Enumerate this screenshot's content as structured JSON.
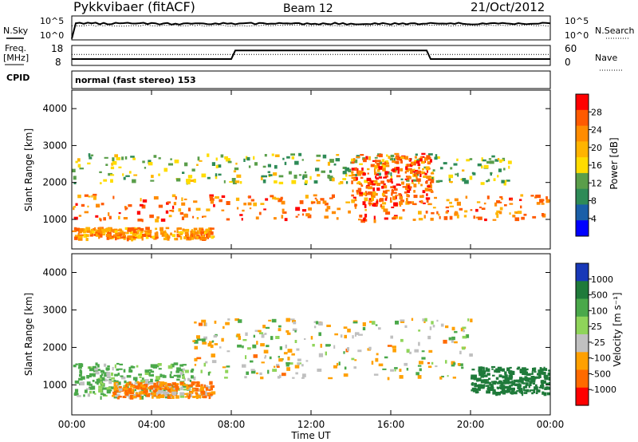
{
  "header": {
    "station": "Pykkvibaer (fitACF)",
    "beam": "Beam 12",
    "date": "21/Oct/2012"
  },
  "top_panels": {
    "nsky_label": "N.Sky",
    "nsky_ticks": [
      "10^5",
      "10^0"
    ],
    "nsky_right_ticks": [
      "10^5",
      "10^0"
    ],
    "nsearch_label": "N.Search",
    "freq_label": "Freq.",
    "freq_unit": "[MHz]",
    "freq_ticks": [
      "18",
      "8"
    ],
    "nave_ticks": [
      "60",
      "0"
    ],
    "nave_label": "Nave",
    "cpid_label": "CPID",
    "cpid_text": "normal (fast stereo) 153"
  },
  "panels": {
    "y_label": "Slant Range [km]",
    "y_ticks": [
      "4000",
      "3000",
      "2000",
      "1000"
    ],
    "x_ticks": [
      "00:00",
      "04:00",
      "08:00",
      "12:00",
      "16:00",
      "20:00",
      "00:00"
    ],
    "x_label": "Time UT"
  },
  "colorbars": {
    "power": {
      "title": "Power [dB]",
      "ticks": [
        "28",
        "24",
        "20",
        "16",
        "12",
        "8",
        "4"
      ],
      "colors": [
        "#ff0000",
        "#ff5a00",
        "#ff8c00",
        "#ffb400",
        "#ffdc00",
        "#5a9e4a",
        "#2e8b57",
        "#1a5fa8",
        "#0000ff"
      ]
    },
    "velocity": {
      "title": "Velocity [m s⁻¹]",
      "ticks": [
        "1000",
        "500",
        "100",
        "25",
        "-25",
        "-100",
        "-500",
        "-1000"
      ],
      "colors": [
        "#1838b8",
        "#1f7a3a",
        "#4aa84a",
        "#8fd45a",
        "#c0c0c0",
        "#ffa000",
        "#ff6a00",
        "#ff0000"
      ]
    }
  },
  "chart_data": [
    {
      "type": "heatmap",
      "title": "Power",
      "xlabel": "Time UT",
      "ylabel": "Slant Range [km]",
      "xlim": [
        "00:00",
        "24:00"
      ],
      "ylim": [
        200,
        4500
      ],
      "colorscale_label": "Power [dB]",
      "colorscale_range": [
        0,
        30
      ],
      "bands": [
        {
          "range_km": [
            1000,
            1700
          ],
          "time": [
            "00:00",
            "24:00"
          ],
          "typical_db": 24
        },
        {
          "range_km": [
            2000,
            2800
          ],
          "time": [
            "00:00",
            "22:00"
          ],
          "typical_db": 12
        },
        {
          "range_km": [
            500,
            800
          ],
          "time": [
            "00:00",
            "07:00"
          ],
          "typical_db": 22
        },
        {
          "range_km": [
            1400,
            2800
          ],
          "time": [
            "14:00",
            "18:00"
          ],
          "typical_db": 26
        }
      ]
    },
    {
      "type": "heatmap",
      "title": "Velocity",
      "xlabel": "Time UT",
      "ylabel": "Slant Range [km]",
      "xlim": [
        "00:00",
        "24:00"
      ],
      "ylim": [
        200,
        4500
      ],
      "colorscale_label": "Velocity [m s⁻¹]",
      "colorscale_range": [
        -1000,
        1000
      ],
      "bands": [
        {
          "range_km": [
            1200,
            2800
          ],
          "time": [
            "06:00",
            "20:00"
          ],
          "typical_ms": 0
        },
        {
          "range_km": [
            700,
            1600
          ],
          "time": [
            "00:00",
            "06:00"
          ],
          "typical_ms": 100
        },
        {
          "range_km": [
            700,
            1100
          ],
          "time": [
            "02:00",
            "07:00"
          ],
          "typical_ms": -100
        },
        {
          "range_km": [
            800,
            1500
          ],
          "time": [
            "20:00",
            "24:00"
          ],
          "typical_ms": 500
        }
      ]
    }
  ]
}
